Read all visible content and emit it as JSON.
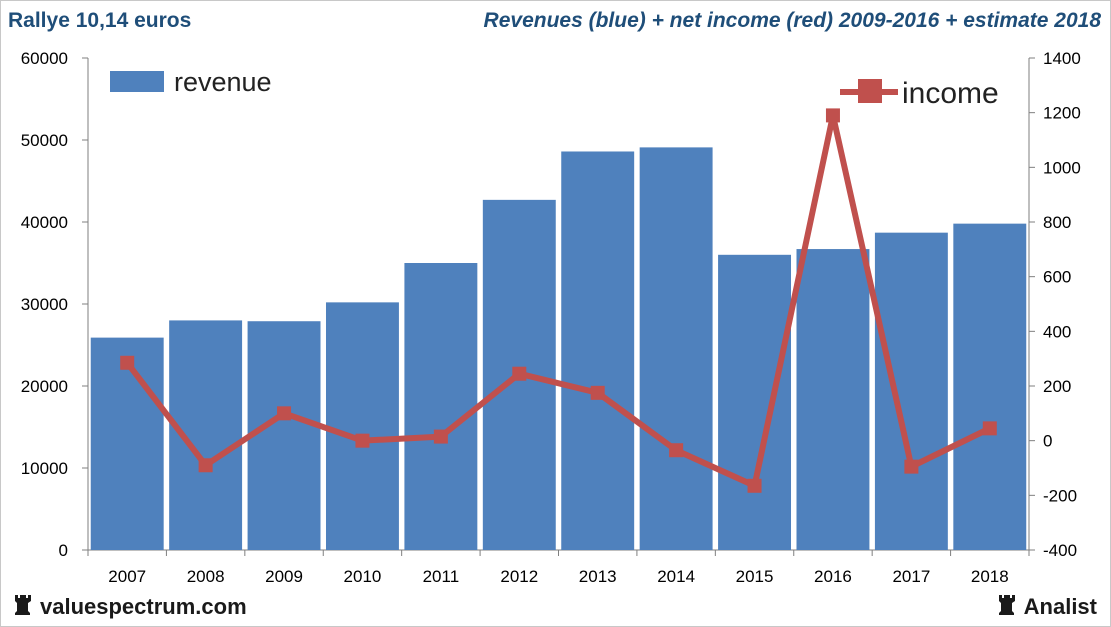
{
  "header": {
    "left_title": "Rallye 10,14 euros",
    "right_title": "Revenues (blue) + net income (red) 2009-2016 + estimate 2018"
  },
  "footer": {
    "left_brand": "valuespectrum.com",
    "right_brand": "Analist",
    "icon": "chess-rook-icon"
  },
  "colors": {
    "revenue_bar": "#4f81bd",
    "income_line": "#c0504d",
    "title": "#1f4e79"
  },
  "chart_data": {
    "type": "bar",
    "categories": [
      "2007",
      "2008",
      "2009",
      "2010",
      "2011",
      "2012",
      "2013",
      "2014",
      "2015",
      "2016",
      "2017",
      "2018"
    ],
    "series": [
      {
        "name": "revenue",
        "type": "bar",
        "axis": "left",
        "values": [
          25900,
          28000,
          27900,
          30200,
          35000,
          42700,
          48600,
          49100,
          36000,
          36700,
          38700,
          39800
        ]
      },
      {
        "name": "income",
        "type": "line",
        "axis": "right",
        "values": [
          285,
          -90,
          100,
          0,
          15,
          245,
          175,
          -35,
          -165,
          1190,
          -95,
          45
        ]
      }
    ],
    "y_left": {
      "min": 0,
      "max": 60000,
      "ticks": [
        0,
        10000,
        20000,
        30000,
        40000,
        50000,
        60000
      ]
    },
    "y_right": {
      "min": -400,
      "max": 1400,
      "ticks": [
        -400,
        -200,
        0,
        200,
        400,
        600,
        800,
        1000,
        1200,
        1400
      ]
    },
    "title": "Revenues (blue) + net income (red) 2009-2016 + estimate 2018",
    "xlabel": "",
    "ylabel": "",
    "grid": false,
    "legend": [
      "top-left",
      "top-right"
    ]
  }
}
